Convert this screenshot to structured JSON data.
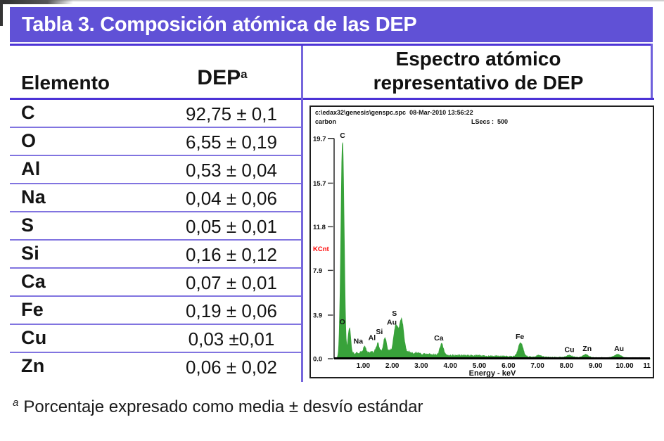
{
  "colors": {
    "bar_purple": "#6051d6",
    "rule_purple": "#4c33d6",
    "row_line_purple": "#8174e0",
    "divider_purple": "#7566dc",
    "spectrum_green": "#38a23a",
    "axis": "#333333",
    "kcnt_red": "#ff0000",
    "title_text": "#ffffff"
  },
  "title": {
    "text": "Tabla 3. Composición atómica de las DEP"
  },
  "table": {
    "col_element": "Elemento",
    "col_dep": "DEP",
    "col_dep_sup": "a",
    "rows": [
      {
        "element": "C",
        "value": "92,75 ± 0,1"
      },
      {
        "element": "O",
        "value": "6,55 ± 0,19"
      },
      {
        "element": "Al",
        "value": "0,53 ± 0,04"
      },
      {
        "element": "Na",
        "value": "0,04 ± 0,06"
      },
      {
        "element": "S",
        "value": "0,05 ± 0,01"
      },
      {
        "element": "Si",
        "value": "0,16 ± 0,12"
      },
      {
        "element": "Ca",
        "value": "0,07 ± 0,01"
      },
      {
        "element": "Fe",
        "value": "0,19 ± 0,06"
      },
      {
        "element": "Cu",
        "value": "0,03 ±0,01"
      },
      {
        "element": "Zn",
        "value": "0,06 ± 0,02"
      }
    ]
  },
  "spectrum_panel": {
    "heading_line1": "Espectro atómico",
    "heading_line2": "representativo de DEP",
    "file_line": "c:\\edax32\\genesis\\genspc.spc  08-Mar-2010 13:56:22",
    "sample_label": "carbon",
    "lsecs_label": "LSecs :  500"
  },
  "footnote": {
    "marker": "a",
    "text": "Porcentaje expresado como media ± desvío estándar"
  },
  "chart_data": {
    "type": "area",
    "title": "",
    "xlabel": "Energy - keV",
    "ylabel": "KCnt",
    "xlim": [
      0,
      11
    ],
    "ylim": [
      0,
      19.7
    ],
    "grid": false,
    "x_ticks": [
      {
        "t": 1,
        "label": "1.00"
      },
      {
        "t": 2,
        "label": "2.00"
      },
      {
        "t": 3,
        "label": "3.00"
      },
      {
        "t": 4,
        "label": "4.00"
      },
      {
        "t": 5,
        "label": "5.00"
      },
      {
        "t": 6,
        "label": "6.00"
      },
      {
        "t": 7,
        "label": "7.00"
      },
      {
        "t": 8,
        "label": "8.00"
      },
      {
        "t": 9,
        "label": "9.00"
      },
      {
        "t": 10,
        "label": "10.00"
      }
    ],
    "x_edge_label": "11",
    "y_ticks": [
      {
        "v": 0.0,
        "label": "0.0"
      },
      {
        "v": 3.9,
        "label": "3.9"
      },
      {
        "v": 7.9,
        "label": "7.9"
      },
      {
        "v": 11.8,
        "label": "11.8"
      },
      {
        "v": 15.7,
        "label": "15.7"
      },
      {
        "v": 19.7,
        "label": "19.7"
      }
    ],
    "background": [
      [
        0.0,
        0.02
      ],
      [
        0.15,
        0.05
      ],
      [
        0.35,
        0.18
      ],
      [
        0.55,
        0.35
      ],
      [
        0.8,
        0.52
      ],
      [
        1.1,
        0.55
      ],
      [
        1.5,
        0.6
      ],
      [
        1.9,
        0.66
      ],
      [
        2.2,
        0.63
      ],
      [
        2.5,
        0.6
      ],
      [
        2.8,
        0.5
      ],
      [
        3.2,
        0.38
      ],
      [
        3.6,
        0.32
      ],
      [
        4.0,
        0.3
      ],
      [
        4.5,
        0.28
      ],
      [
        5.0,
        0.26
      ],
      [
        5.5,
        0.22
      ],
      [
        6.0,
        0.2
      ],
      [
        6.5,
        0.18
      ],
      [
        7.0,
        0.15
      ],
      [
        7.5,
        0.13
      ],
      [
        8.0,
        0.12
      ],
      [
        8.5,
        0.11
      ],
      [
        9.0,
        0.1
      ],
      [
        9.5,
        0.09
      ],
      [
        10.0,
        0.08
      ],
      [
        10.9,
        0.07
      ]
    ],
    "peaks": [
      {
        "label": "C",
        "kev": 0.29,
        "kcnt": 19.3,
        "sigma": 0.055,
        "label_dx": 0,
        "label_dy": 0
      },
      {
        "label": "O",
        "kev": 0.525,
        "kcnt": 2.45,
        "sigma": 0.045,
        "label_dx": -10,
        "label_dy": 0
      },
      {
        "label": "Na",
        "kev": 1.05,
        "kcnt": 0.5,
        "sigma": 0.05,
        "label_dx": -9,
        "label_dy": 0
      },
      {
        "label": "Al",
        "kev": 1.5,
        "kcnt": 0.75,
        "sigma": 0.05,
        "label_dx": -8,
        "label_dy": 0
      },
      {
        "label": "Si",
        "kev": 1.75,
        "kcnt": 1.25,
        "sigma": 0.05,
        "label_dx": -8,
        "label_dy": 0
      },
      {
        "label": "Au",
        "kev": 2.13,
        "kcnt": 2.35,
        "sigma": 0.07,
        "label_dx": -6,
        "label_dy": 4
      },
      {
        "label": "S",
        "kev": 2.32,
        "kcnt": 2.9,
        "sigma": 0.07,
        "label_dx": -10,
        "label_dy": 0
      },
      {
        "label": "Ca",
        "kev": 3.7,
        "kcnt": 1.0,
        "sigma": 0.06,
        "label_dx": -4,
        "label_dy": 0
      },
      {
        "label": "Fe",
        "kev": 6.42,
        "kcnt": 1.25,
        "sigma": 0.08,
        "label_dx": -1,
        "label_dy": 0
      },
      {
        "label": "",
        "kev": 7.06,
        "kcnt": 0.15,
        "sigma": 0.08,
        "label_dx": 0,
        "label_dy": 0
      },
      {
        "label": "Cu",
        "kev": 8.1,
        "kcnt": 0.18,
        "sigma": 0.09,
        "label_dx": 0,
        "label_dy": 0
      },
      {
        "label": "Zn",
        "kev": 8.66,
        "kcnt": 0.26,
        "sigma": 0.09,
        "label_dx": 2,
        "label_dy": 0
      },
      {
        "label": "Au",
        "kev": 9.76,
        "kcnt": 0.3,
        "sigma": 0.11,
        "label_dx": 2,
        "label_dy": 0
      }
    ]
  }
}
